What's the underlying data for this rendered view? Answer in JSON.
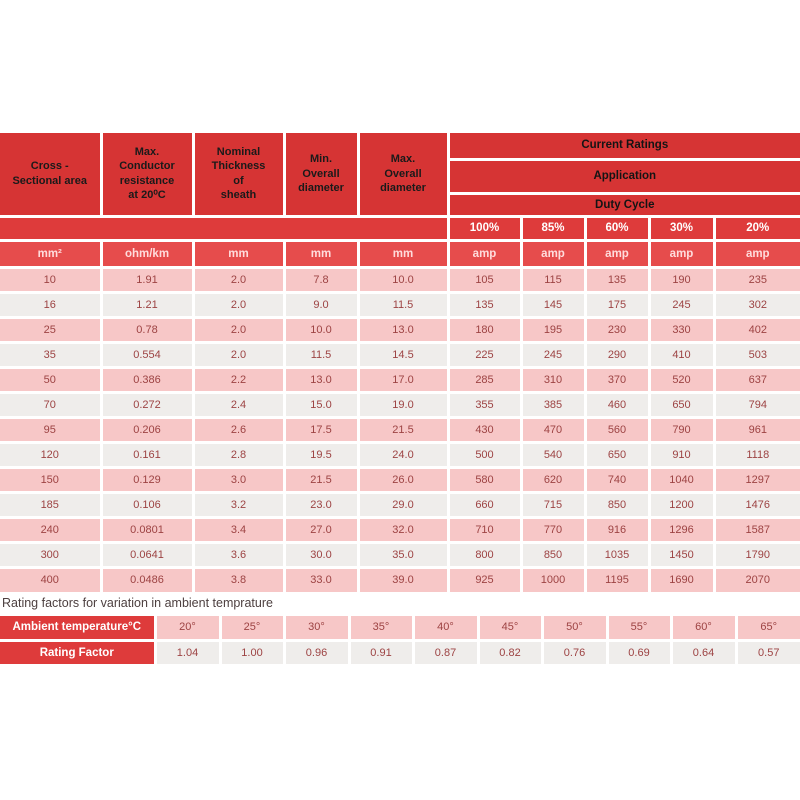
{
  "colors": {
    "header_red": "#d63434",
    "bright_red": "#de3b3b",
    "units_red": "#e64c4c",
    "row_pink": "#f7c7c7",
    "row_gray": "#efedeb",
    "data_text": "#9d4343",
    "header_text": "#1a1a1a",
    "border_white": "#ffffff"
  },
  "main_table": {
    "column_headers": [
      "Cross -\nSectional area",
      "Max.\nConductor\nresistance\nat 20⁰C",
      "Nominal\nThickness\nof\nsheath",
      "Min.\nOverall\ndiameter",
      "Max.\nOverall\ndiameter"
    ],
    "current_ratings_label": "Current Ratings",
    "application_label": "Application",
    "duty_cycle_label": "Duty Cycle",
    "duty_percents": [
      "100%",
      "85%",
      "60%",
      "30%",
      "20%"
    ],
    "units": [
      "mm²",
      "ohm/km",
      "mm",
      "mm",
      "mm",
      "amp",
      "amp",
      "amp",
      "amp",
      "amp"
    ],
    "rows": [
      [
        "10",
        "1.91",
        "2.0",
        "7.8",
        "10.0",
        "105",
        "115",
        "135",
        "190",
        "235"
      ],
      [
        "16",
        "1.21",
        "2.0",
        "9.0",
        "11.5",
        "135",
        "145",
        "175",
        "245",
        "302"
      ],
      [
        "25",
        "0.78",
        "2.0",
        "10.0",
        "13.0",
        "180",
        "195",
        "230",
        "330",
        "402"
      ],
      [
        "35",
        "0.554",
        "2.0",
        "11.5",
        "14.5",
        "225",
        "245",
        "290",
        "410",
        "503"
      ],
      [
        "50",
        "0.386",
        "2.2",
        "13.0",
        "17.0",
        "285",
        "310",
        "370",
        "520",
        "637"
      ],
      [
        "70",
        "0.272",
        "2.4",
        "15.0",
        "19.0",
        "355",
        "385",
        "460",
        "650",
        "794"
      ],
      [
        "95",
        "0.206",
        "2.6",
        "17.5",
        "21.5",
        "430",
        "470",
        "560",
        "790",
        "961"
      ],
      [
        "120",
        "0.161",
        "2.8",
        "19.5",
        "24.0",
        "500",
        "540",
        "650",
        "910",
        "1118"
      ],
      [
        "150",
        "0.129",
        "3.0",
        "21.5",
        "26.0",
        "580",
        "620",
        "740",
        "1040",
        "1297"
      ],
      [
        "185",
        "0.106",
        "3.2",
        "23.0",
        "29.0",
        "660",
        "715",
        "850",
        "1200",
        "1476"
      ],
      [
        "240",
        "0.0801",
        "3.4",
        "27.0",
        "32.0",
        "710",
        "770",
        "916",
        "1296",
        "1587"
      ],
      [
        "300",
        "0.0641",
        "3.6",
        "30.0",
        "35.0",
        "800",
        "850",
        "1035",
        "1450",
        "1790"
      ],
      [
        "400",
        "0.0486",
        "3.8",
        "33.0",
        "39.0",
        "925",
        "1000",
        "1195",
        "1690",
        "2070"
      ]
    ]
  },
  "rating_factors": {
    "title": "Rating factors for variation in ambient temprature",
    "row_labels": [
      "Ambient temperature°C",
      "Rating Factor"
    ],
    "temperatures": [
      "20°",
      "25°",
      "30°",
      "35°",
      "40°",
      "45°",
      "50°",
      "55°",
      "60°",
      "65°"
    ],
    "factors": [
      "1.04",
      "1.00",
      "0.96",
      "0.91",
      "0.87",
      "0.82",
      "0.76",
      "0.69",
      "0.64",
      "0.57"
    ]
  }
}
